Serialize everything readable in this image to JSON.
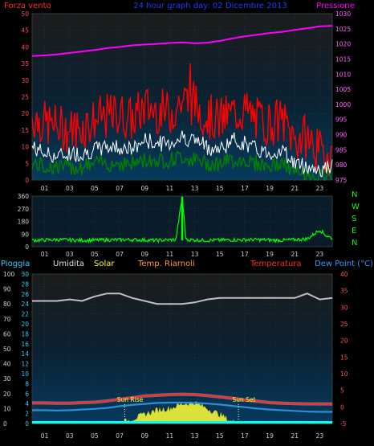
{
  "header": {
    "wind_label": "Forza vento",
    "title": "24 hour graph day: 02 Dicembre 2013",
    "pressure_label": "Pressione"
  },
  "colors": {
    "background": "#000000",
    "grid": "#004c4c",
    "wind_gust": "#ff0000",
    "wind_avg": "#008000",
    "wind_white": "#ffffff",
    "pressure": "#ff00ff",
    "direction": "#00ff00",
    "humidity": "#c0c0c0",
    "temperature": "#ff2a2a",
    "dewpoint": "#2a8fd6",
    "solar": "#ffff33",
    "rain": "#00ffff"
  },
  "legend_mid": {
    "rain": "Pioggia",
    "humidity": "Umidita",
    "solar": "Solar",
    "heat_index": "Temp. Riarnoli",
    "temperature": "Temperatura",
    "dewpoint": "Dew Point (°C)"
  },
  "direction_letters": [
    "N",
    "W",
    "S",
    "E",
    "N"
  ],
  "sun": {
    "rise_label": "Sun Rise",
    "set_label": "Sun Set"
  },
  "x_ticks": [
    "01",
    "03",
    "05",
    "07",
    "09",
    "11",
    "13",
    "15",
    "17",
    "19",
    "21",
    "23"
  ],
  "chart_data": [
    {
      "type": "line",
      "title": "24 hour graph day: 02 Dicembre 2013",
      "x_hours": [
        0,
        1,
        2,
        3,
        4,
        5,
        6,
        7,
        8,
        9,
        10,
        11,
        12,
        13,
        14,
        15,
        16,
        17,
        18,
        19,
        20,
        21,
        22,
        23,
        24
      ],
      "left_axis": {
        "label": "Forza vento",
        "range": [
          0,
          50
        ],
        "ticks": [
          0,
          5,
          10,
          15,
          20,
          25,
          30,
          35,
          40,
          45,
          50
        ]
      },
      "right_axis": {
        "label": "Pressione",
        "range": [
          975,
          1030
        ],
        "ticks": [
          975,
          980,
          985,
          990,
          995,
          1000,
          1005,
          1010,
          1015,
          1020,
          1025,
          1030
        ]
      },
      "series": [
        {
          "name": "Pressione",
          "axis": "right",
          "values": [
            1016,
            1016.2,
            1016.5,
            1017,
            1017.5,
            1018,
            1018.6,
            1019,
            1019.5,
            1019.8,
            1020,
            1020.3,
            1020.5,
            1020.2,
            1020.4,
            1021,
            1021.8,
            1022.5,
            1023,
            1023.6,
            1024,
            1024.6,
            1025.2,
            1025.8,
            1026
          ]
        },
        {
          "name": "gust",
          "axis": "left",
          "values": [
            19,
            17,
            16,
            15,
            16,
            18,
            19,
            20,
            18,
            22,
            21,
            20,
            24,
            23,
            19,
            18,
            20,
            21,
            18,
            17,
            18,
            12,
            13,
            8,
            8
          ]
        },
        {
          "name": "avg",
          "axis": "left",
          "values": [
            10,
            8,
            7,
            8,
            8,
            9,
            10,
            10,
            9,
            12,
            11,
            11,
            13,
            12,
            10,
            9,
            12,
            11,
            9,
            8,
            9,
            5,
            4,
            3,
            4
          ]
        },
        {
          "name": "base",
          "axis": "left",
          "values": [
            5,
            4,
            4,
            4,
            4,
            5,
            5,
            5,
            5,
            6,
            6,
            6,
            7,
            6,
            5,
            5,
            6,
            6,
            5,
            4,
            5,
            2,
            2,
            1,
            2
          ]
        }
      ]
    },
    {
      "type": "scatter",
      "x_hours": [
        0,
        2,
        4,
        6,
        8,
        10,
        11.5,
        12.0,
        12.3,
        14,
        16,
        18,
        20,
        22,
        23,
        23.5,
        24
      ],
      "y_range": [
        0,
        360
      ],
      "y_ticks": [
        0,
        90,
        180,
        270,
        360
      ],
      "values": [
        45,
        50,
        45,
        48,
        50,
        45,
        50,
        355,
        50,
        45,
        48,
        50,
        45,
        55,
        120,
        80,
        60
      ]
    },
    {
      "type": "line",
      "x_hours": [
        0,
        1,
        2,
        3,
        4,
        5,
        6,
        7,
        8,
        9,
        10,
        11,
        12,
        13,
        14,
        15,
        16,
        17,
        18,
        19,
        20,
        21,
        22,
        23,
        24
      ],
      "left_axis": {
        "label": "Umidita",
        "range": [
          0,
          100
        ],
        "ticks": [
          0,
          10,
          20,
          30,
          40,
          50,
          60,
          70,
          80,
          90,
          100
        ]
      },
      "left_axis_2": {
        "label": "Pioggia",
        "range": [
          0,
          30
        ],
        "ticks": [
          0,
          2,
          4,
          6,
          8,
          10,
          12,
          14,
          16,
          18,
          20,
          22,
          24,
          26,
          28,
          30
        ]
      },
      "right_axis": {
        "label": "Temperatura",
        "range": [
          -5,
          40
        ],
        "ticks": [
          -5,
          0,
          5,
          10,
          15,
          20,
          25,
          30,
          35,
          40
        ]
      },
      "series": [
        {
          "name": "Umidita",
          "axis": "left",
          "values": [
            82,
            82,
            82,
            83,
            82,
            85,
            87,
            87,
            84,
            82,
            80,
            80,
            80,
            81,
            83,
            84,
            84,
            84,
            84,
            84,
            84,
            84,
            87,
            83,
            84
          ]
        },
        {
          "name": "Temperatura",
          "axis": "right",
          "values": [
            1.2,
            1.2,
            1.1,
            1.1,
            1.3,
            1.4,
            1.8,
            2.3,
            2.8,
            3.3,
            3.5,
            3.7,
            3.8,
            3.7,
            3.4,
            3.0,
            2.6,
            2.1,
            1.7,
            1.3,
            1.1,
            1.0,
            0.9,
            0.9,
            0.9
          ]
        },
        {
          "name": "Dew Point",
          "axis": "right",
          "values": [
            -1.0,
            -1.0,
            -1.1,
            -1.0,
            -0.8,
            -0.6,
            -0.3,
            0.2,
            0.6,
            0.9,
            1.2,
            1.3,
            1.3,
            1.2,
            1.0,
            0.7,
            0.3,
            -0.1,
            -0.5,
            -0.8,
            -1.0,
            -1.2,
            -1.4,
            -1.5,
            -1.5
          ]
        },
        {
          "name": "Solar",
          "axis": "left",
          "values": [
            0,
            0,
            0,
            0,
            0,
            0,
            0,
            0,
            3,
            6,
            9,
            10,
            13,
            14,
            10,
            6,
            1,
            0,
            0,
            0,
            0,
            0,
            0,
            0,
            0
          ]
        },
        {
          "name": "Pioggia",
          "axis": "left",
          "values": [
            0,
            0,
            0,
            0,
            0,
            0,
            0,
            0,
            0,
            0,
            0,
            0,
            0,
            0,
            0,
            0,
            0,
            0,
            0,
            0,
            0,
            0,
            0,
            0,
            0
          ]
        }
      ],
      "sunrise_hour": 7.4,
      "sunset_hour": 16.5
    }
  ]
}
